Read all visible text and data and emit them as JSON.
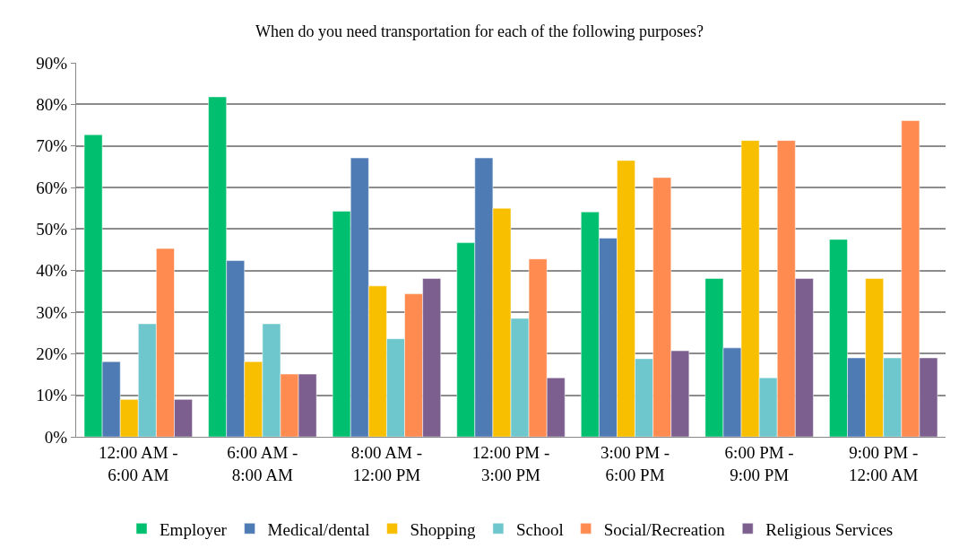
{
  "chart_data": {
    "type": "bar",
    "title": "When do you need transportation for each of the following purposes?",
    "categories": [
      "12:00 AM - 6:00 AM",
      "6:00 AM - 8:00 AM",
      "8:00 AM - 12:00 PM",
      "12:00 PM - 3:00 PM",
      "3:00 PM - 6:00 PM",
      "6:00 PM - 9:00 PM",
      "9:00 PM - 12:00 AM"
    ],
    "series": [
      {
        "name": "Employer",
        "color": "#00bf6f",
        "values": [
          72.7,
          81.8,
          54.3,
          46.7,
          54.1,
          38.1,
          47.5
        ]
      },
      {
        "name": "Medical/dental",
        "color": "#4f7bb5",
        "values": [
          18.1,
          42.4,
          67.1,
          67.1,
          47.8,
          21.4,
          19.0
        ]
      },
      {
        "name": "Shopping",
        "color": "#f8be00",
        "values": [
          9.0,
          18.1,
          36.3,
          55.0,
          66.5,
          71.3,
          38.1
        ]
      },
      {
        "name": "School",
        "color": "#6ec7cc",
        "values": [
          27.2,
          27.2,
          23.6,
          28.5,
          18.8,
          14.2,
          19.0
        ]
      },
      {
        "name": "Social/Recreation",
        "color": "#ff8b50",
        "values": [
          45.3,
          15.1,
          34.4,
          42.8,
          62.4,
          71.3,
          76.1
        ]
      },
      {
        "name": "Religious Services",
        "color": "#7d5f8f",
        "values": [
          9.0,
          15.1,
          38.1,
          14.2,
          20.7,
          38.1,
          19.0
        ]
      }
    ],
    "ylim": [
      0,
      90
    ],
    "yticks": [
      {
        "value": 0,
        "label": "0%"
      },
      {
        "value": 10,
        "label": "10%"
      },
      {
        "value": 20,
        "label": "20%"
      },
      {
        "value": 30,
        "label": "30%"
      },
      {
        "value": 40,
        "label": "40%"
      },
      {
        "value": 50,
        "label": "50%"
      },
      {
        "value": 60,
        "label": "60%"
      },
      {
        "value": 70,
        "label": "70%"
      },
      {
        "value": 80,
        "label": "80%"
      },
      {
        "value": 90,
        "label": "90%"
      }
    ],
    "grid": "y",
    "legend": "bottom"
  }
}
